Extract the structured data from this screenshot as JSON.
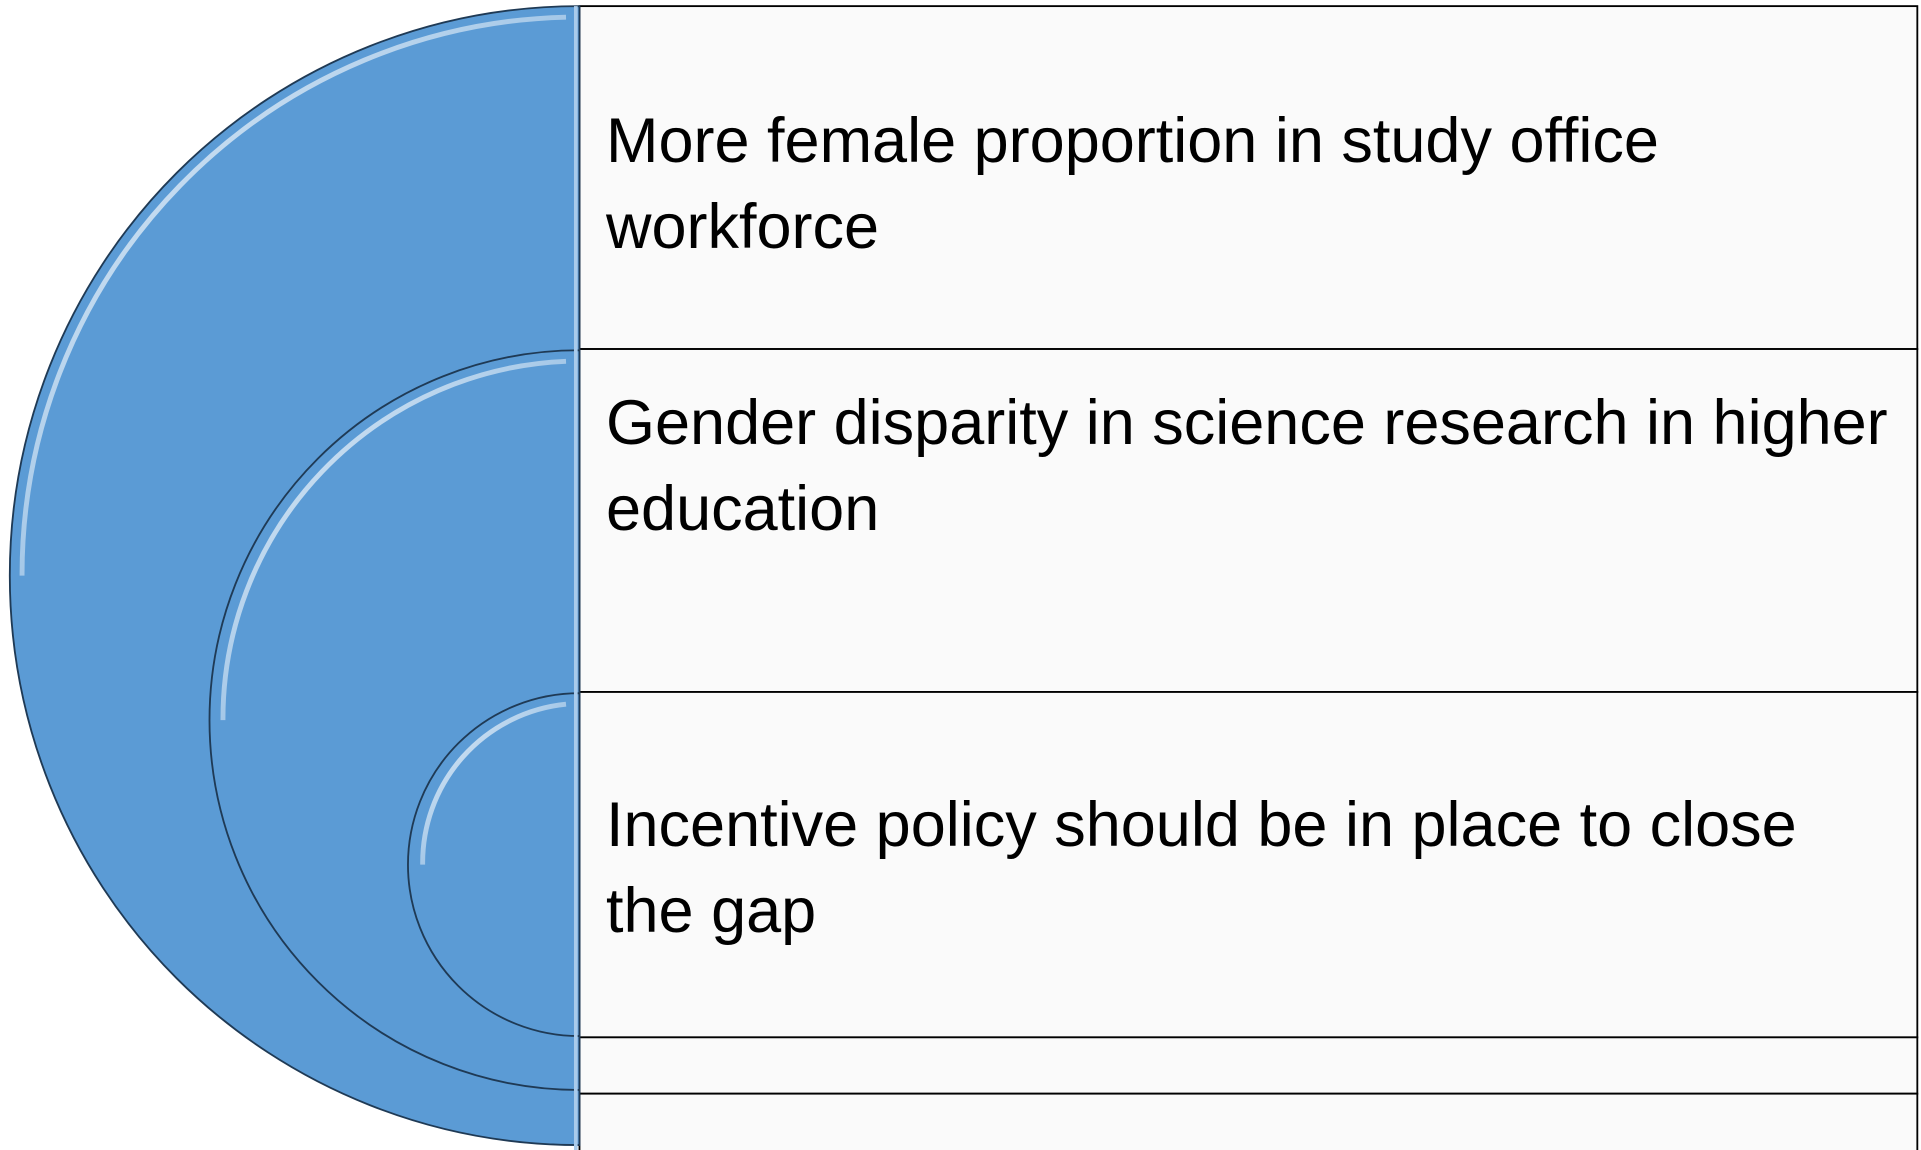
{
  "items": [
    {
      "text": "More female proportion in study office workforce"
    },
    {
      "text": "Gender disparity in science research in higher education"
    },
    {
      "text": "Incentive policy should be in place to close the gap"
    }
  ]
}
